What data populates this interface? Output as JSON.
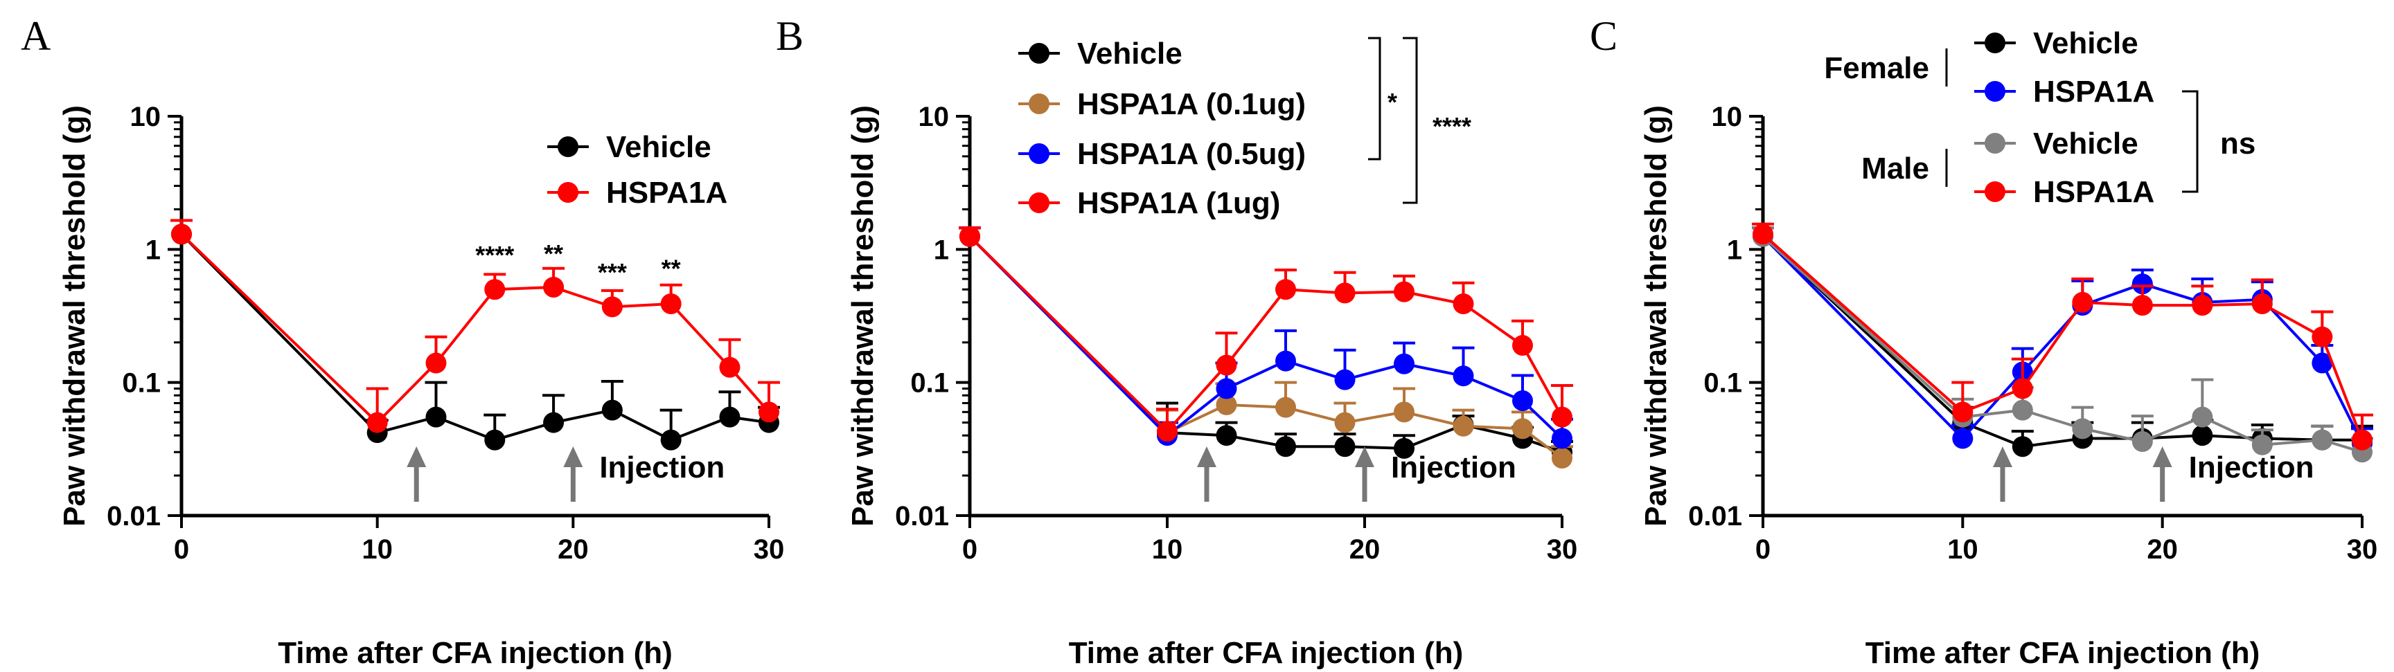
{
  "chart_data": [
    {
      "panel": "A",
      "type": "line",
      "title": "",
      "xlabel": "Time after CFA injection (h)",
      "ylabel": "Paw withdrawal threshold (g)",
      "yscale": "log",
      "xlim": [
        0,
        30
      ],
      "ylim": [
        0.01,
        10
      ],
      "xticks": [
        "0",
        "10",
        "20",
        "30"
      ],
      "yticks": [
        "0.01",
        "0.1",
        "1",
        "10"
      ],
      "legend_position": "top-right",
      "series": [
        {
          "name": "Vehicle",
          "color": "#000000",
          "x": [
            0,
            10,
            13,
            16,
            19,
            22,
            25,
            28,
            30
          ],
          "y": [
            1.3,
            0.042,
            0.055,
            0.037,
            0.05,
            0.062,
            0.037,
            0.055,
            0.05
          ],
          "err": [
            0.35,
            0.01,
            0.045,
            0.02,
            0.03,
            0.04,
            0.025,
            0.03,
            0.015
          ]
        },
        {
          "name": "HSPA1A",
          "color": "#ff0000",
          "x": [
            0,
            10,
            13,
            16,
            19,
            22,
            25,
            28,
            30
          ],
          "y": [
            1.3,
            0.05,
            0.14,
            0.5,
            0.52,
            0.37,
            0.39,
            0.13,
            0.06
          ],
          "err": [
            0.35,
            0.04,
            0.08,
            0.15,
            0.2,
            0.12,
            0.15,
            0.08,
            0.04
          ]
        }
      ],
      "annotations": [
        {
          "text": "****",
          "x": 16,
          "y": 0.78
        },
        {
          "text": "**",
          "x": 19,
          "y": 0.8
        },
        {
          "text": "***",
          "x": 22,
          "y": 0.58
        },
        {
          "text": "**",
          "x": 25,
          "y": 0.62
        }
      ],
      "arrows_x": [
        12,
        20
      ],
      "arrow_label": "Injection"
    },
    {
      "panel": "B",
      "type": "line",
      "title": "",
      "xlabel": "Time after CFA injection (h)",
      "ylabel": "Paw withdrawal threshold (g)",
      "yscale": "log",
      "xlim": [
        0,
        30
      ],
      "ylim": [
        0.01,
        10
      ],
      "xticks": [
        "0",
        "10",
        "20",
        "30"
      ],
      "yticks": [
        "0.01",
        "0.1",
        "1",
        "10"
      ],
      "legend_position": "top-left",
      "series": [
        {
          "name": "Vehicle",
          "color": "#000000",
          "x": [
            0,
            10,
            13,
            16,
            19,
            22,
            25,
            28,
            30
          ],
          "y": [
            1.25,
            0.042,
            0.04,
            0.033,
            0.033,
            0.032,
            0.048,
            0.038,
            0.03
          ],
          "err": [
            0.2,
            0.028,
            0.01,
            0.008,
            0.008,
            0.008,
            0.008,
            0.008,
            0.006
          ]
        },
        {
          "name": "HSPA1A (0.1ug)",
          "color": "#b5763a",
          "x": [
            0,
            10,
            13,
            16,
            19,
            22,
            25,
            28,
            30
          ],
          "y": [
            1.25,
            0.042,
            0.068,
            0.065,
            0.05,
            0.06,
            0.047,
            0.045,
            0.027
          ],
          "err": [
            0.2,
            0.02,
            0.03,
            0.035,
            0.02,
            0.03,
            0.015,
            0.015,
            0.006
          ]
        },
        {
          "name": "HSPA1A (0.5ug)",
          "color": "#0000ff",
          "x": [
            0,
            10,
            13,
            16,
            19,
            22,
            25,
            28,
            30
          ],
          "y": [
            1.25,
            0.04,
            0.09,
            0.145,
            0.105,
            0.138,
            0.112,
            0.073,
            0.038
          ],
          "err": [
            0.2,
            0.01,
            0.05,
            0.1,
            0.07,
            0.06,
            0.07,
            0.04,
            0.015
          ]
        },
        {
          "name": "HSPA1A (1ug)",
          "color": "#ff0000",
          "x": [
            0,
            10,
            13,
            16,
            19,
            22,
            25,
            28,
            30
          ],
          "y": [
            1.25,
            0.043,
            0.135,
            0.5,
            0.47,
            0.48,
            0.39,
            0.19,
            0.055
          ],
          "err": [
            0.2,
            0.02,
            0.1,
            0.2,
            0.2,
            0.15,
            0.17,
            0.1,
            0.04
          ]
        }
      ],
      "annotations": [
        {
          "text": "*",
          "bracket": "Vehicle vs HSPA1A (0.5ug)"
        },
        {
          "text": "****",
          "bracket": "Vehicle vs HSPA1A (1ug)"
        }
      ],
      "arrows_x": [
        12,
        20
      ],
      "arrow_label": "Injection"
    },
    {
      "panel": "C",
      "type": "line",
      "title": "",
      "xlabel": "Time after CFA injection (h)",
      "ylabel": "Paw withdrawal threshold (g)",
      "yscale": "log",
      "xlim": [
        0,
        30
      ],
      "ylim": [
        0.01,
        10
      ],
      "xticks": [
        "0",
        "10",
        "20",
        "30"
      ],
      "yticks": [
        "0.01",
        "0.1",
        "1",
        "10"
      ],
      "legend_position": "top-right",
      "legend_groups": [
        "Female",
        "Male"
      ],
      "series": [
        {
          "name": "Vehicle",
          "group": "Female",
          "color": "#000000",
          "x": [
            0,
            10,
            13,
            16,
            19,
            22,
            25,
            28,
            30
          ],
          "y": [
            1.25,
            0.05,
            0.033,
            0.038,
            0.038,
            0.04,
            0.038,
            0.037,
            0.037
          ],
          "err": [
            0.2,
            0.015,
            0.01,
            0.012,
            0.012,
            0.012,
            0.01,
            0.01,
            0.01
          ]
        },
        {
          "name": "HSPA1A",
          "group": "Female",
          "color": "#0000ff",
          "x": [
            0,
            10,
            13,
            16,
            19,
            22,
            25,
            28,
            30
          ],
          "y": [
            1.25,
            0.038,
            0.12,
            0.38,
            0.55,
            0.4,
            0.42,
            0.14,
            0.035
          ],
          "err": [
            0.2,
            0.01,
            0.06,
            0.2,
            0.15,
            0.2,
            0.15,
            0.05,
            0.01
          ]
        },
        {
          "name": "Vehicle",
          "group": "Male",
          "color": "#808080",
          "x": [
            0,
            10,
            13,
            16,
            19,
            22,
            25,
            28,
            30
          ],
          "y": [
            1.25,
            0.055,
            0.062,
            0.045,
            0.036,
            0.055,
            0.034,
            0.037,
            0.03
          ],
          "err": [
            0.2,
            0.02,
            0.03,
            0.02,
            0.02,
            0.05,
            0.01,
            0.01,
            0.008
          ]
        },
        {
          "name": "HSPA1A",
          "group": "Male",
          "color": "#ff0000",
          "x": [
            0,
            10,
            13,
            16,
            19,
            22,
            25,
            28,
            30
          ],
          "y": [
            1.3,
            0.06,
            0.09,
            0.4,
            0.38,
            0.38,
            0.39,
            0.22,
            0.037
          ],
          "err": [
            0.25,
            0.04,
            0.06,
            0.2,
            0.15,
            0.15,
            0.2,
            0.12,
            0.02
          ]
        }
      ],
      "annotations": [
        {
          "text": "ns",
          "bracket": "Female HSPA1A vs Male HSPA1A"
        }
      ],
      "arrows_x": [
        12,
        20
      ],
      "arrow_label": "Injection"
    }
  ]
}
